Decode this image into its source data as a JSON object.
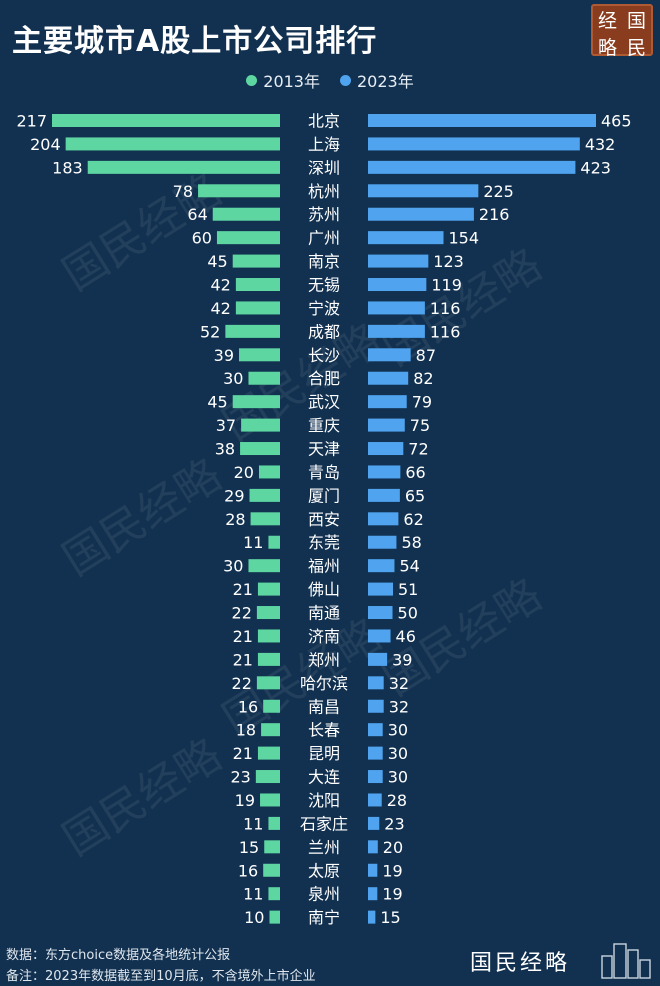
{
  "title": "主要城市A股上市公司排行",
  "seal": [
    "经",
    "国",
    "略",
    "民"
  ],
  "watermark": "国民经略",
  "legend": [
    {
      "label": "2013年",
      "color": "#5ed6a2"
    },
    {
      "label": "2023年",
      "color": "#4fa3ef"
    }
  ],
  "footer": {
    "source": "数据：东方choice数据及各地统计公报",
    "note": "备注：2023年数据截至到10月底，不含境外上市企业"
  },
  "brand": "国民经略",
  "colors": {
    "background": "#123150",
    "series_2013": "#5ed6a2",
    "series_2023": "#4fa3ef"
  },
  "chart_data": {
    "type": "bar",
    "title": "主要城市A股上市公司排行",
    "categories": [
      "北京",
      "上海",
      "深圳",
      "杭州",
      "苏州",
      "广州",
      "南京",
      "无锡",
      "宁波",
      "成都",
      "长沙",
      "合肥",
      "武汉",
      "重庆",
      "天津",
      "青岛",
      "厦门",
      "西安",
      "东莞",
      "福州",
      "佛山",
      "南通",
      "济南",
      "郑州",
      "哈尔滨",
      "南昌",
      "长春",
      "昆明",
      "大连",
      "沈阳",
      "石家庄",
      "兰州",
      "太原",
      "泉州",
      "南宁"
    ],
    "series": [
      {
        "name": "2013年",
        "values": [
          217,
          204,
          183,
          78,
          64,
          60,
          45,
          42,
          42,
          52,
          39,
          30,
          45,
          37,
          38,
          20,
          29,
          28,
          11,
          30,
          21,
          22,
          21,
          21,
          22,
          16,
          18,
          21,
          23,
          19,
          11,
          15,
          16,
          11,
          10
        ]
      },
      {
        "name": "2023年",
        "values": [
          465,
          432,
          423,
          225,
          216,
          154,
          123,
          119,
          116,
          116,
          87,
          82,
          79,
          75,
          72,
          66,
          65,
          62,
          58,
          54,
          51,
          50,
          46,
          39,
          32,
          32,
          30,
          30,
          30,
          28,
          23,
          20,
          19,
          19,
          15
        ]
      }
    ],
    "layout": "butterfly (2013 bars extend left, 2023 bars extend right)",
    "grid": false,
    "legend_position": "top-center"
  }
}
